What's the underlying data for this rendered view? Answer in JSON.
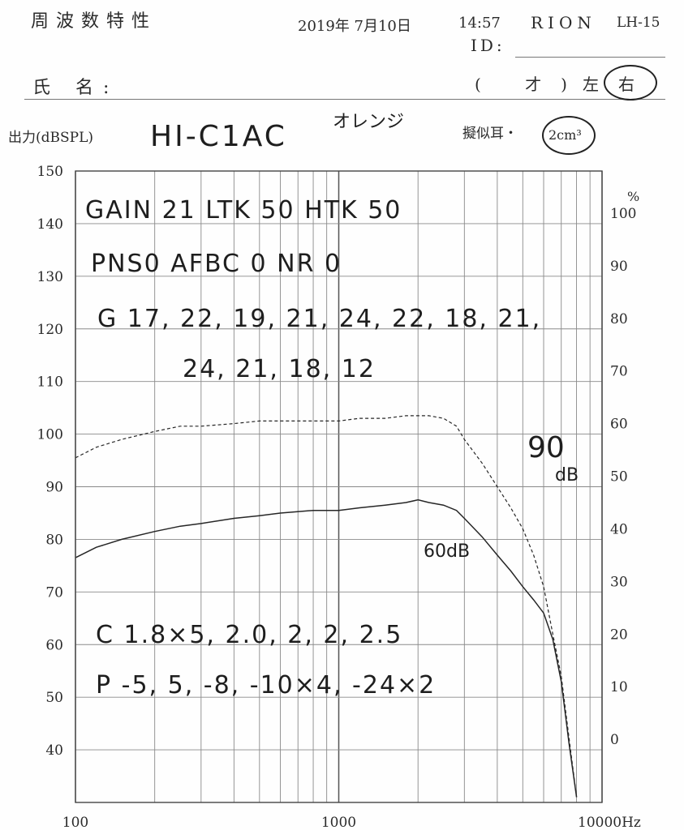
{
  "header": {
    "title": "周波数特性",
    "date": "2019年 7月10日",
    "time": "14:57",
    "brand": "RION",
    "model": "LH-15",
    "id_label": "ID:",
    "name_label": "氏 名:",
    "age_label": "(  才)",
    "side_left": "左",
    "side_right": "右",
    "output_label": "出力(dBSPL)",
    "coupler_label": "擬似耳・",
    "coupler_value": "2cm³"
  },
  "handwriting": {
    "device": "HI-C1AC",
    "color": "オレンジ",
    "line1": "GAIN 21   LTK 50   HTK 50",
    "line2": "PNS0   AFBC 0   NR 0",
    "line3": "G 17, 22, 19, 21, 24, 22, 18, 21,",
    "line4": "24, 21, 18, 12",
    "line5": "C  1.8×5, 2.0, 2, 2, 2.5",
    "line6": "P  -5, 5, -8, -10×4, -24×2",
    "label_90db_num": "90",
    "label_90db_unit": "dB",
    "label_60db": "60dB"
  },
  "chart_data": {
    "type": "line",
    "x_scale": "log",
    "xlim": [
      100,
      10000
    ],
    "ylim": [
      30,
      150
    ],
    "y_ticks": [
      40,
      50,
      60,
      70,
      80,
      90,
      100,
      110,
      120,
      130,
      140,
      150
    ],
    "x_tick_labels": [
      {
        "value": 100,
        "label": "100"
      },
      {
        "value": 1000,
        "label": "1000"
      },
      {
        "value": 10000,
        "label": "10000Hz"
      }
    ],
    "right_axis": {
      "unit_label": "%",
      "ticks": [
        0,
        10,
        20,
        30,
        40,
        50,
        60,
        70,
        80,
        90,
        100
      ],
      "zero_at_left_value": 42,
      "step_left_units_per_10": 10
    },
    "grid": true,
    "series": [
      {
        "name": "90dB",
        "style": "dashed",
        "x": [
          100,
          120,
          150,
          200,
          250,
          300,
          400,
          500,
          600,
          800,
          1000,
          1200,
          1500,
          1800,
          2000,
          2200,
          2500,
          2800,
          3000,
          3500,
          4000,
          4500,
          5000,
          5500,
          6000,
          6500,
          7000,
          7500,
          8000
        ],
        "y": [
          95.5,
          97.5,
          99,
          100.5,
          101.5,
          101.5,
          102,
          102.5,
          102.5,
          102.5,
          102.5,
          103,
          103,
          103.5,
          103.5,
          103.5,
          103,
          101.5,
          99,
          94.5,
          90,
          86,
          82,
          77,
          71,
          62,
          54,
          42,
          31
        ]
      },
      {
        "name": "60dB",
        "style": "solid",
        "x": [
          100,
          120,
          150,
          200,
          250,
          300,
          400,
          500,
          600,
          800,
          1000,
          1200,
          1500,
          1800,
          2000,
          2200,
          2500,
          2800,
          3000,
          3500,
          4000,
          4500,
          5000,
          5500,
          6000,
          6500,
          7000,
          7500,
          8000
        ],
        "y": [
          76.5,
          78.5,
          80,
          81.5,
          82.5,
          83,
          84,
          84.5,
          85,
          85.5,
          85.5,
          86,
          86.5,
          87,
          87.5,
          87,
          86.5,
          85.5,
          84,
          80.5,
          77,
          74,
          71,
          68.5,
          66,
          61,
          53,
          41,
          31
        ]
      }
    ]
  }
}
